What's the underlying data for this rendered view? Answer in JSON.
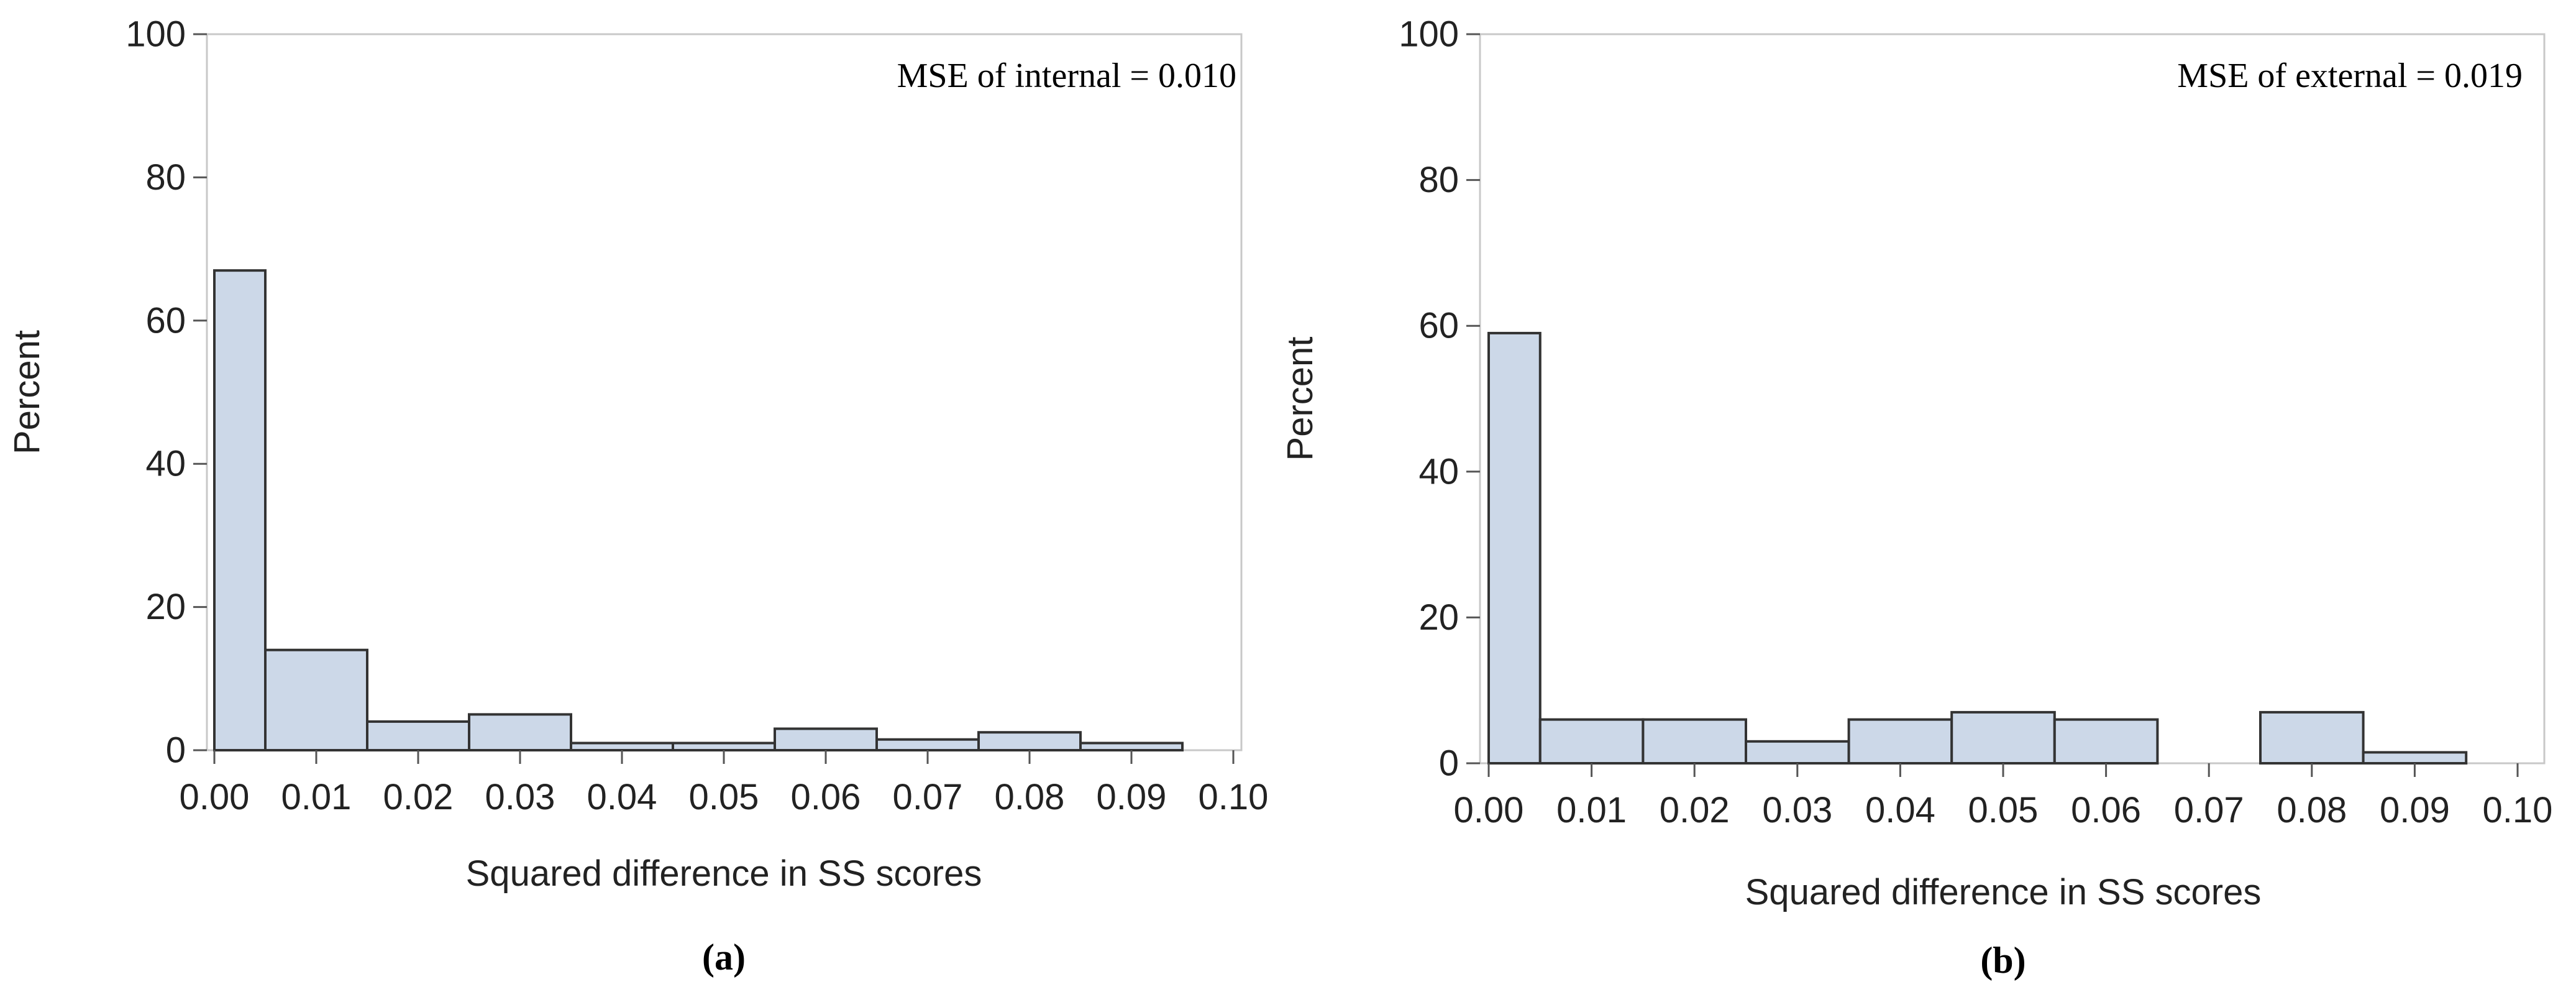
{
  "chart_data": [
    {
      "type": "bar",
      "panel_label": "(a)",
      "annotation": "MSE of internal = 0.010",
      "xlabel": "Squared difference in SS scores",
      "ylabel": "Percent",
      "bin_edges": [
        0.0,
        0.005,
        0.015,
        0.025,
        0.035,
        0.045,
        0.055,
        0.065,
        0.075,
        0.085,
        0.095
      ],
      "values": [
        67,
        14,
        4,
        5,
        1,
        1,
        3,
        1.5,
        2.5,
        1
      ],
      "xlim": [
        0.0,
        0.1
      ],
      "ylim": [
        0,
        100
      ],
      "xticks": [
        "0.00",
        "0.01",
        "0.02",
        "0.03",
        "0.04",
        "0.05",
        "0.06",
        "0.07",
        "0.08",
        "0.09",
        "0.10"
      ],
      "yticks": [
        "0",
        "20",
        "40",
        "60",
        "80",
        "100"
      ],
      "bar_fill": "#ccd8e8",
      "bar_stroke": "#333333",
      "grid": false
    },
    {
      "type": "bar",
      "panel_label": "(b)",
      "annotation": "MSE of external = 0.019",
      "xlabel": "Squared difference in SS scores",
      "ylabel": "Percent",
      "bin_edges": [
        0.0,
        0.005,
        0.015,
        0.025,
        0.035,
        0.045,
        0.055,
        0.065,
        0.075,
        0.085,
        0.095
      ],
      "values": [
        59,
        6,
        6,
        3,
        6,
        7,
        6,
        0,
        7,
        1.5
      ],
      "xlim": [
        0.0,
        0.1
      ],
      "ylim": [
        0,
        100
      ],
      "xticks": [
        "0.00",
        "0.01",
        "0.02",
        "0.03",
        "0.04",
        "0.05",
        "0.06",
        "0.07",
        "0.08",
        "0.09",
        "0.10"
      ],
      "yticks": [
        "0",
        "20",
        "40",
        "60",
        "80",
        "100"
      ],
      "bar_fill": "#ccd8e8",
      "bar_stroke": "#333333",
      "grid": false
    }
  ]
}
